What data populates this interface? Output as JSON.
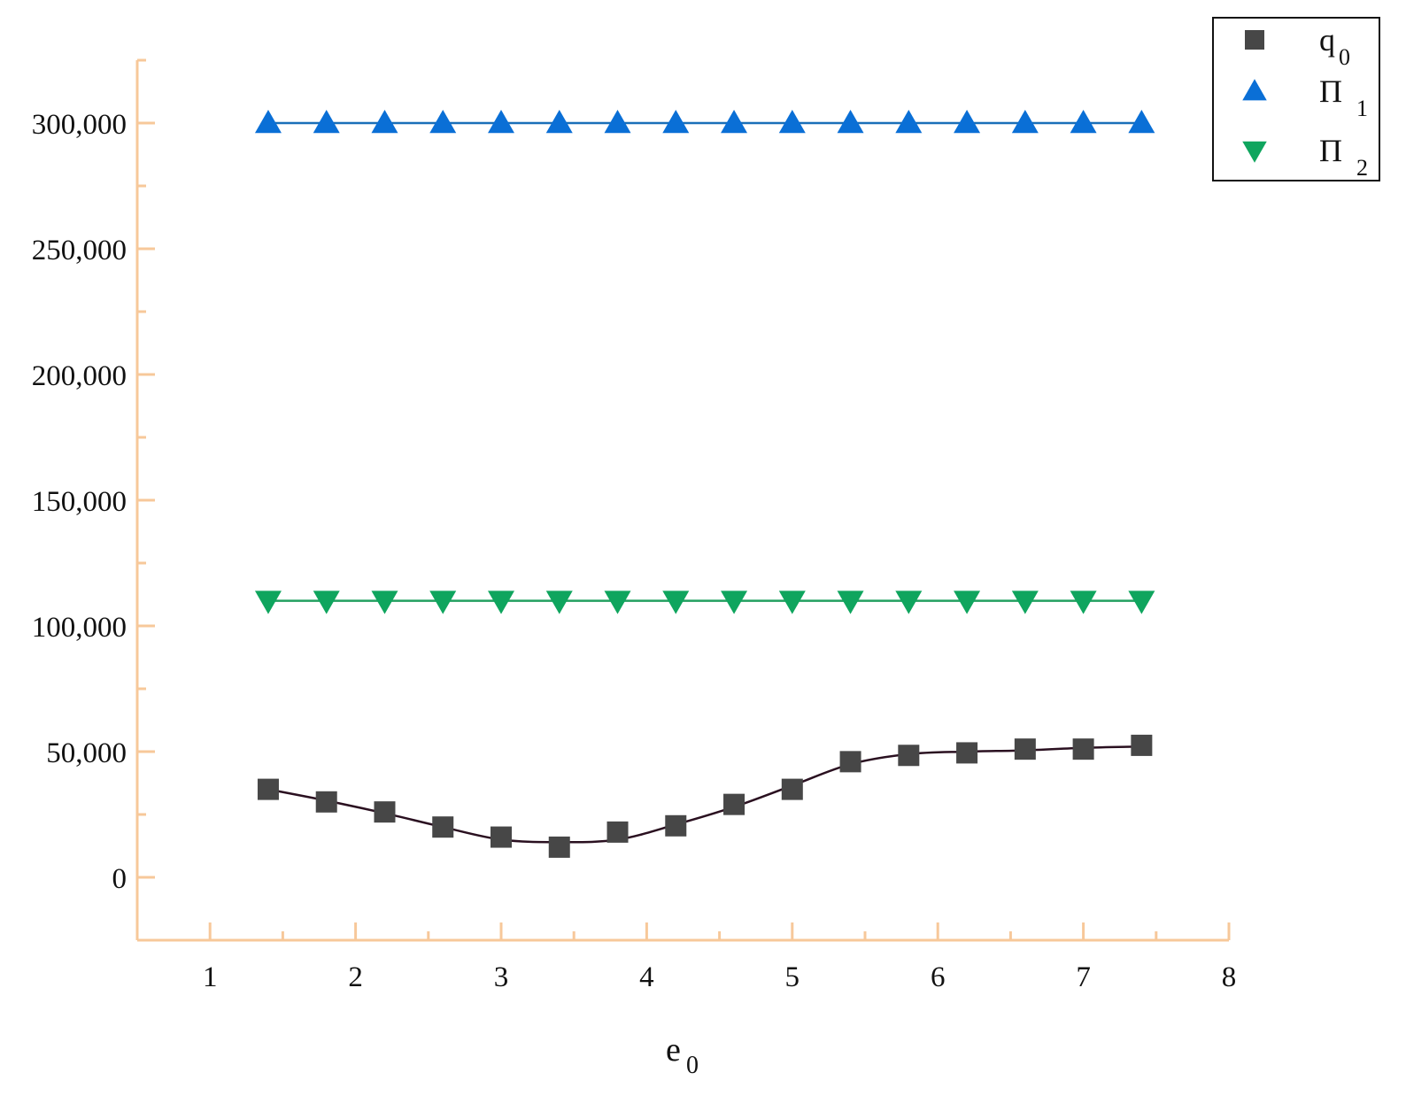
{
  "chart_data": {
    "type": "line",
    "title": "",
    "xlabel": {
      "base": "e",
      "sub": "0"
    },
    "ylabel": "",
    "xlim": [
      0.5,
      8
    ],
    "ylim": [
      -25000,
      325000
    ],
    "x_ticks": [
      1,
      2,
      3,
      4,
      5,
      6,
      7,
      8
    ],
    "x_tick_labels": [
      "1",
      "2",
      "3",
      "4",
      "5",
      "6",
      "7",
      "8"
    ],
    "y_ticks": [
      0,
      50000,
      100000,
      150000,
      200000,
      250000,
      300000
    ],
    "y_tick_labels": [
      "0",
      "50,000",
      "100,000",
      "150,000",
      "200,000",
      "250,000",
      "300,000"
    ],
    "grid": false,
    "legend_position": "top-right",
    "x": [
      1.4,
      1.8,
      2.2,
      2.6,
      3.0,
      3.4,
      3.8,
      4.2,
      4.6,
      5.0,
      5.4,
      5.8,
      6.2,
      6.6,
      7.0,
      7.4
    ],
    "series": [
      {
        "name": {
          "base": "q",
          "sub": "0"
        },
        "marker": "square",
        "color": "#474747",
        "line_color": "#2a1020",
        "values": [
          35000,
          30000,
          26000,
          20000,
          16000,
          12000,
          18000,
          20500,
          29000,
          35000,
          46000,
          48500,
          49500,
          51000,
          51000,
          52500
        ],
        "curve": [
          35000,
          30500,
          25500,
          20000,
          15000,
          14000,
          15000,
          21000,
          28000,
          36500,
          45000,
          49000,
          50000,
          50500,
          51500,
          52000
        ]
      },
      {
        "name": {
          "base": "Π",
          "sub": "1"
        },
        "marker": "triangle-up",
        "color": "#0a6fd6",
        "line_color": "#1a6fb8",
        "values": [
          300000,
          300000,
          300000,
          300000,
          300000,
          300000,
          300000,
          300000,
          300000,
          300000,
          300000,
          300000,
          300000,
          300000,
          300000,
          300000
        ],
        "curve": [
          300000,
          300000,
          300000,
          300000,
          300000,
          300000,
          300000,
          300000,
          300000,
          300000,
          300000,
          300000,
          300000,
          300000,
          300000,
          300000
        ]
      },
      {
        "name": {
          "base": "Π",
          "sub": "2"
        },
        "marker": "triangle-down",
        "color": "#0fa55e",
        "line_color": "#22a060",
        "values": [
          110000,
          110000,
          110000,
          110000,
          110000,
          110000,
          110000,
          110000,
          110000,
          110000,
          110000,
          110000,
          110000,
          110000,
          110000,
          110000
        ],
        "curve": [
          110000,
          110000,
          110000,
          110000,
          110000,
          110000,
          110000,
          110000,
          110000,
          110000,
          110000,
          110000,
          110000,
          110000,
          110000,
          110000
        ]
      }
    ],
    "axis_color": "#f7c89a"
  }
}
